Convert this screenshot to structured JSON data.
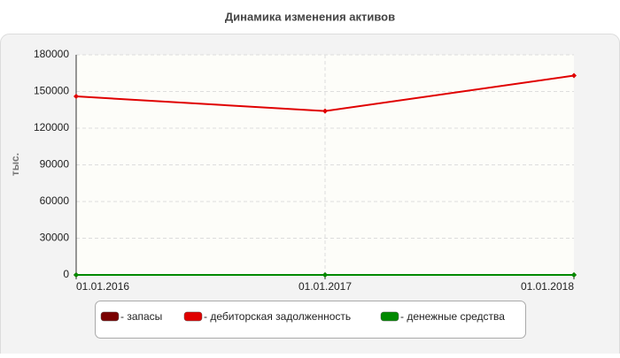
{
  "chart_data": {
    "type": "line",
    "title": "Динамика изменения активов",
    "ylabel": "тыс.",
    "categories": [
      "01.01.2016",
      "01.01.2017",
      "01.01.2018"
    ],
    "series": [
      {
        "name": "- запасы",
        "color": "#7a0000",
        "values": [
          0,
          0,
          0
        ]
      },
      {
        "name": "- дебиторская задолженность",
        "color": "#e00000",
        "values": [
          146000,
          134000,
          163000
        ]
      },
      {
        "name": "- денежные средства",
        "color": "#008a00",
        "values": [
          0,
          0,
          0
        ]
      }
    ],
    "ylim": [
      0,
      180000
    ],
    "yticks": [
      0,
      30000,
      60000,
      90000,
      120000,
      150000,
      180000
    ],
    "grid": true,
    "legend": "bottom"
  }
}
